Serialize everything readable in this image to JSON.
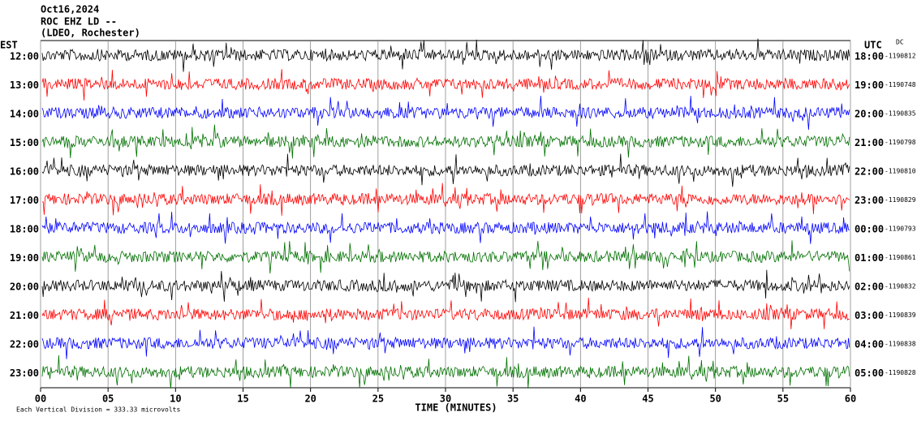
{
  "chart_data": {
    "type": "helicorder",
    "title_lines": [
      "Oct16,2024",
      "ROC EHZ LD --",
      "(LDEO, Rochester)"
    ],
    "left_axis_label": "EST",
    "right_axis_label": "UTC",
    "dc_label": "DC",
    "xlabel": "TIME (MINUTES)",
    "footnote": "Each Vertical Division = 333.33 microvolts",
    "xlim": [
      0,
      60
    ],
    "xticks": [
      {
        "value": 0,
        "label": "00"
      },
      {
        "value": 5,
        "label": "05"
      },
      10,
      15,
      20,
      25,
      30,
      35,
      40,
      45,
      50,
      55,
      60
    ],
    "grid": true,
    "colors": [
      "#000000",
      "#ff0000",
      "#0000ff",
      "#007000"
    ],
    "rows_left": [
      "12:00",
      "13:00",
      "14:00",
      "15:00",
      "16:00",
      "17:00",
      "18:00",
      "19:00",
      "20:00",
      "21:00",
      "22:00",
      "23:00"
    ],
    "rows_right": [
      "18:00",
      "19:00",
      "20:00",
      "21:00",
      "22:00",
      "23:00",
      "00:00",
      "01:00",
      "02:00",
      "03:00",
      "04:00",
      "05:00"
    ],
    "dc_values": [
      -1190812,
      -1190748,
      -1190835,
      -1190798,
      -1190810,
      -1190829,
      -1190793,
      -1190861,
      -1190832,
      -1190839,
      -1190838,
      -1190828
    ]
  }
}
